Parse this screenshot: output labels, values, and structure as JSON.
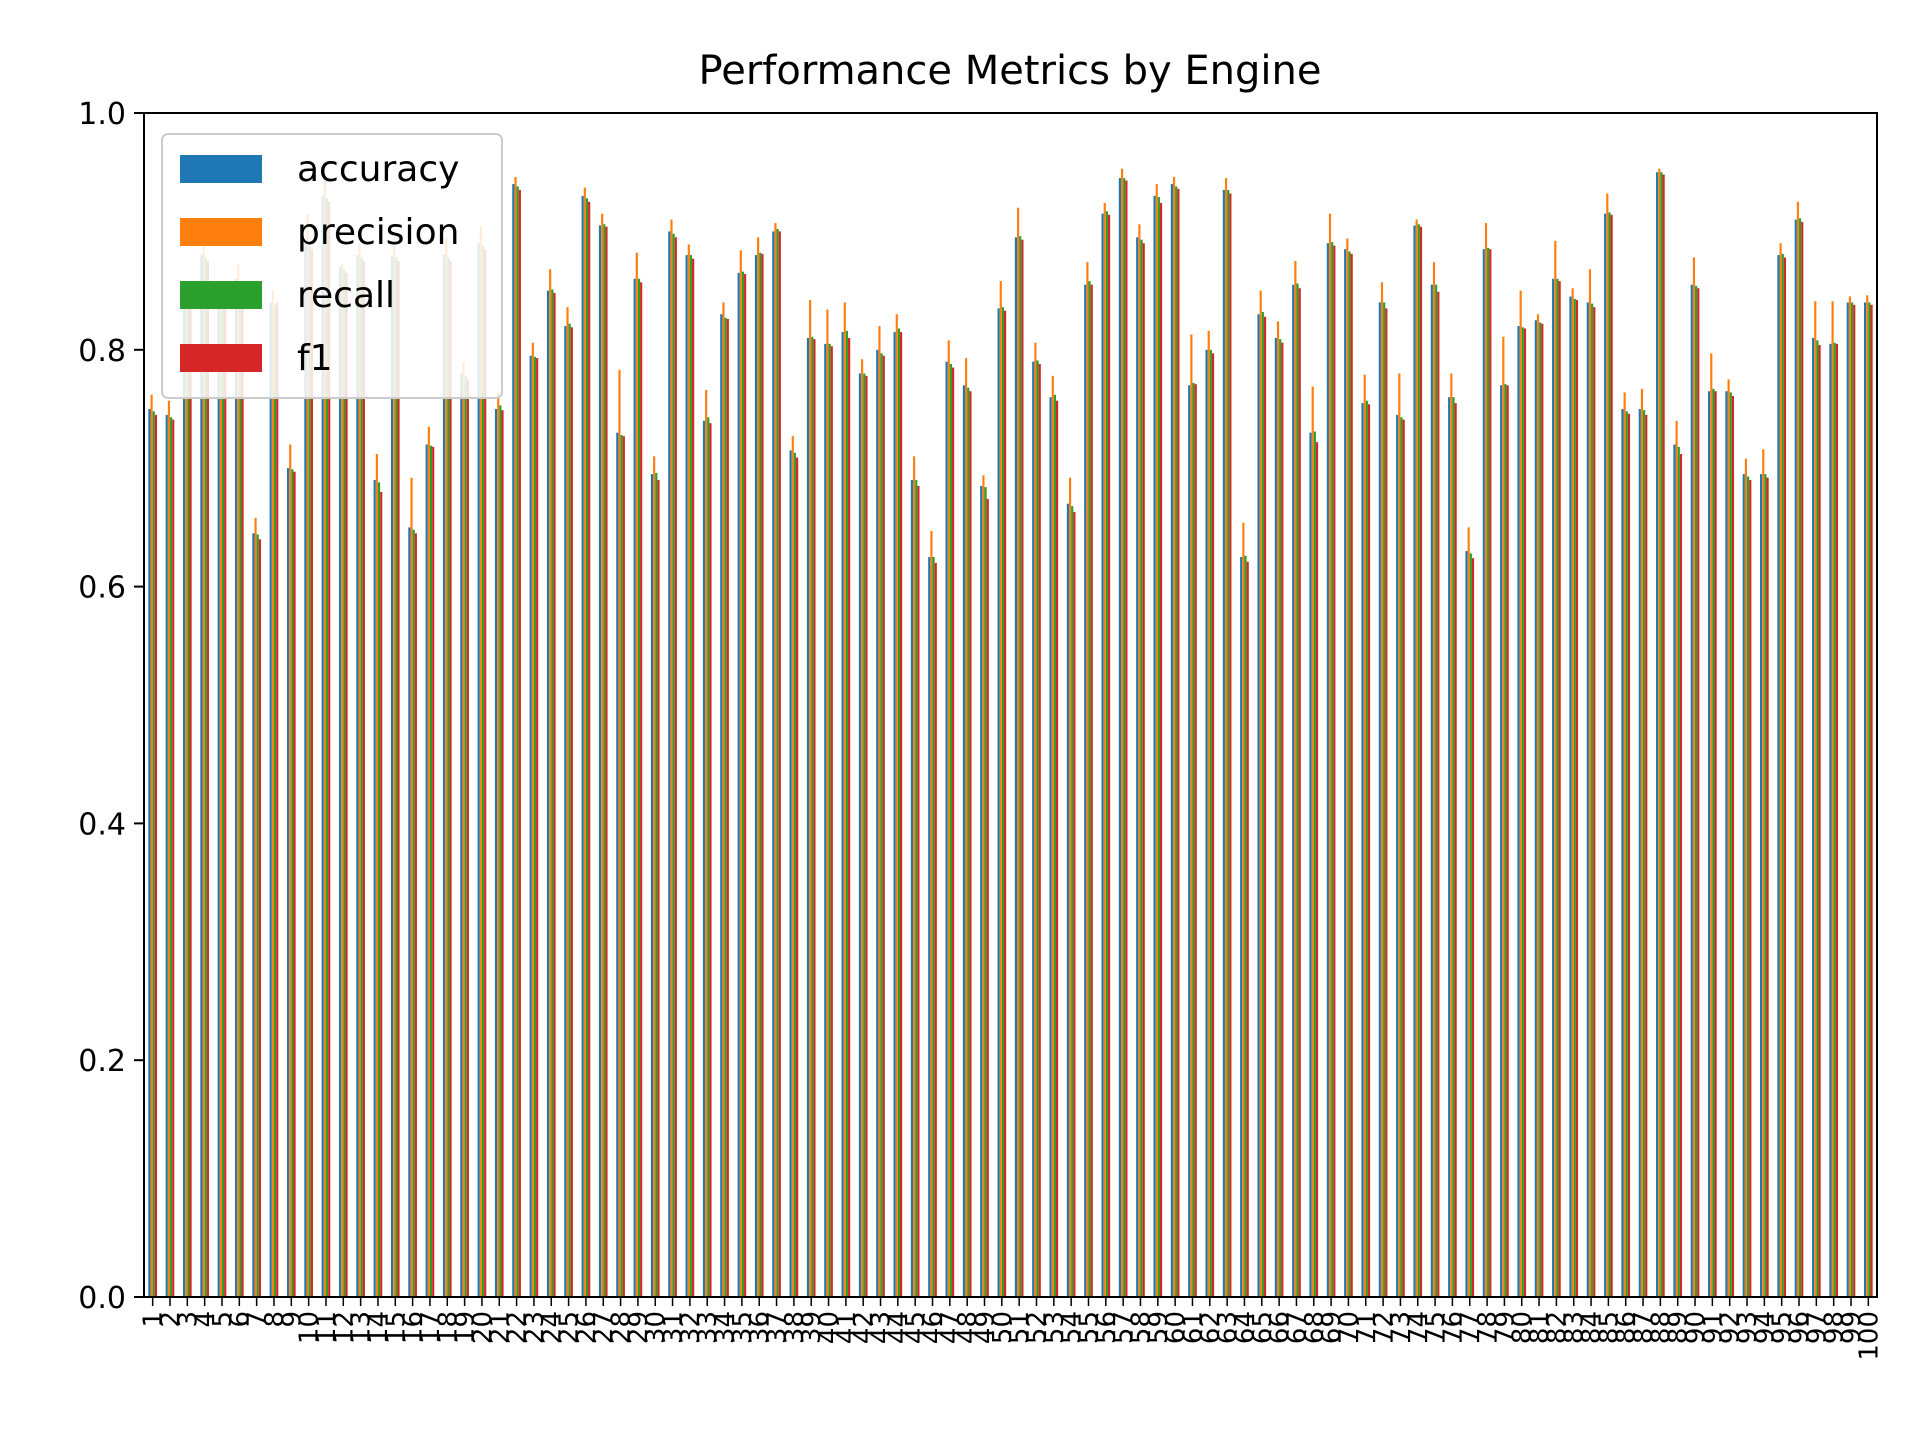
{
  "chart_data": {
    "type": "bar",
    "title": "Performance Metrics by Engine",
    "xlabel": "",
    "ylabel": "",
    "ylim": [
      0,
      1.0
    ],
    "yticks": [
      "0.0",
      "0.2",
      "0.4",
      "0.6",
      "0.8",
      "1.0"
    ],
    "grid": false,
    "legend_position": "top-left",
    "categories": [
      "1",
      "2",
      "3",
      "4",
      "5",
      "6",
      "7",
      "8",
      "9",
      "10",
      "11",
      "12",
      "13",
      "14",
      "15",
      "16",
      "17",
      "18",
      "19",
      "20",
      "21",
      "22",
      "23",
      "24",
      "25",
      "26",
      "27",
      "28",
      "29",
      "30",
      "31",
      "32",
      "33",
      "34",
      "35",
      "36",
      "37",
      "38",
      "39",
      "40",
      "41",
      "42",
      "43",
      "44",
      "45",
      "46",
      "47",
      "48",
      "49",
      "50",
      "51",
      "52",
      "53",
      "54",
      "55",
      "56",
      "57",
      "58",
      "59",
      "60",
      "61",
      "62",
      "63",
      "64",
      "65",
      "66",
      "67",
      "68",
      "69",
      "70",
      "71",
      "72",
      "73",
      "74",
      "75",
      "76",
      "77",
      "78",
      "79",
      "80",
      "81",
      "82",
      "83",
      "84",
      "85",
      "86",
      "87",
      "88",
      "89",
      "90",
      "91",
      "92",
      "93",
      "94",
      "95",
      "96",
      "97",
      "98",
      "99",
      "100"
    ],
    "series": [
      {
        "name": "accuracy",
        "color": "#1f77b4",
        "values": [
          0.75,
          0.745,
          0.84,
          0.88,
          0.84,
          0.86,
          0.645,
          0.84,
          0.7,
          0.89,
          0.93,
          0.87,
          0.88,
          0.69,
          0.88,
          0.65,
          0.72,
          0.88,
          0.78,
          0.89,
          0.75,
          0.94,
          0.795,
          0.85,
          0.82,
          0.93,
          0.905,
          0.73,
          0.86,
          0.695,
          0.9,
          0.88,
          0.74,
          0.83,
          0.865,
          0.88,
          0.9,
          0.715,
          0.81,
          0.805,
          0.815,
          0.78,
          0.8,
          0.815,
          0.69,
          0.625,
          0.79,
          0.77,
          0.685,
          0.835,
          0.895,
          0.79,
          0.76,
          0.67,
          0.855,
          0.915,
          0.945,
          0.895,
          0.93,
          0.94,
          0.77,
          0.8,
          0.935,
          0.625,
          0.83,
          0.81,
          0.855,
          0.73,
          0.89,
          0.885,
          0.755,
          0.84,
          0.745,
          0.905,
          0.855,
          0.76,
          0.63,
          0.885,
          0.77,
          0.82,
          0.825,
          0.86,
          0.845,
          0.84,
          0.915,
          0.75,
          0.75,
          0.95,
          0.72,
          0.855,
          0.765,
          0.765,
          0.695,
          0.695,
          0.88,
          0.91,
          0.81,
          0.805,
          0.84,
          0.84
        ]
      },
      {
        "name": "precision",
        "color": "#ff7f0e",
        "values": [
          0.762,
          0.757,
          0.85,
          0.89,
          0.85,
          0.872,
          0.658,
          0.85,
          0.72,
          0.915,
          0.945,
          0.872,
          0.89,
          0.712,
          0.895,
          0.692,
          0.735,
          0.895,
          0.79,
          0.905,
          0.765,
          0.946,
          0.806,
          0.868,
          0.836,
          0.937,
          0.915,
          0.783,
          0.882,
          0.71,
          0.91,
          0.889,
          0.766,
          0.84,
          0.884,
          0.895,
          0.907,
          0.727,
          0.842,
          0.834,
          0.84,
          0.792,
          0.82,
          0.83,
          0.71,
          0.647,
          0.808,
          0.793,
          0.694,
          0.858,
          0.92,
          0.806,
          0.778,
          0.692,
          0.874,
          0.924,
          0.953,
          0.906,
          0.94,
          0.946,
          0.813,
          0.816,
          0.945,
          0.654,
          0.85,
          0.824,
          0.875,
          0.769,
          0.915,
          0.894,
          0.779,
          0.857,
          0.78,
          0.91,
          0.874,
          0.78,
          0.65,
          0.907,
          0.811,
          0.85,
          0.83,
          0.892,
          0.852,
          0.868,
          0.932,
          0.764,
          0.767,
          0.953,
          0.74,
          0.878,
          0.797,
          0.775,
          0.708,
          0.716,
          0.89,
          0.925,
          0.841,
          0.841,
          0.845,
          0.846
        ]
      },
      {
        "name": "recall",
        "color": "#2ca02c",
        "values": [
          0.748,
          0.743,
          0.838,
          0.878,
          0.838,
          0.858,
          0.644,
          0.838,
          0.699,
          0.888,
          0.928,
          0.868,
          0.878,
          0.688,
          0.878,
          0.648,
          0.719,
          0.878,
          0.778,
          0.888,
          0.753,
          0.938,
          0.794,
          0.851,
          0.822,
          0.928,
          0.906,
          0.728,
          0.86,
          0.696,
          0.898,
          0.88,
          0.743,
          0.827,
          0.866,
          0.882,
          0.902,
          0.713,
          0.811,
          0.805,
          0.816,
          0.78,
          0.797,
          0.818,
          0.69,
          0.625,
          0.788,
          0.768,
          0.684,
          0.836,
          0.896,
          0.791,
          0.762,
          0.668,
          0.858,
          0.917,
          0.945,
          0.893,
          0.929,
          0.938,
          0.772,
          0.8,
          0.935,
          0.626,
          0.832,
          0.809,
          0.856,
          0.731,
          0.891,
          0.883,
          0.757,
          0.84,
          0.743,
          0.906,
          0.855,
          0.76,
          0.628,
          0.886,
          0.771,
          0.819,
          0.823,
          0.86,
          0.843,
          0.839,
          0.916,
          0.748,
          0.749,
          0.95,
          0.718,
          0.854,
          0.767,
          0.764,
          0.693,
          0.695,
          0.881,
          0.911,
          0.808,
          0.806,
          0.84,
          0.84
        ]
      },
      {
        "name": "f1",
        "color": "#d62728",
        "values": [
          0.745,
          0.741,
          0.835,
          0.875,
          0.835,
          0.855,
          0.64,
          0.84,
          0.697,
          0.885,
          0.925,
          0.865,
          0.875,
          0.68,
          0.875,
          0.645,
          0.718,
          0.875,
          0.775,
          0.885,
          0.749,
          0.935,
          0.793,
          0.848,
          0.819,
          0.925,
          0.904,
          0.727,
          0.857,
          0.69,
          0.895,
          0.877,
          0.738,
          0.826,
          0.864,
          0.881,
          0.9,
          0.709,
          0.809,
          0.803,
          0.81,
          0.778,
          0.795,
          0.815,
          0.685,
          0.62,
          0.785,
          0.765,
          0.674,
          0.833,
          0.893,
          0.788,
          0.757,
          0.663,
          0.855,
          0.914,
          0.943,
          0.89,
          0.924,
          0.936,
          0.771,
          0.797,
          0.932,
          0.621,
          0.828,
          0.806,
          0.852,
          0.722,
          0.888,
          0.881,
          0.754,
          0.835,
          0.741,
          0.904,
          0.849,
          0.755,
          0.624,
          0.885,
          0.77,
          0.818,
          0.822,
          0.858,
          0.842,
          0.836,
          0.914,
          0.746,
          0.745,
          0.948,
          0.712,
          0.852,
          0.765,
          0.761,
          0.69,
          0.692,
          0.878,
          0.908,
          0.804,
          0.805,
          0.838,
          0.838
        ]
      }
    ]
  }
}
